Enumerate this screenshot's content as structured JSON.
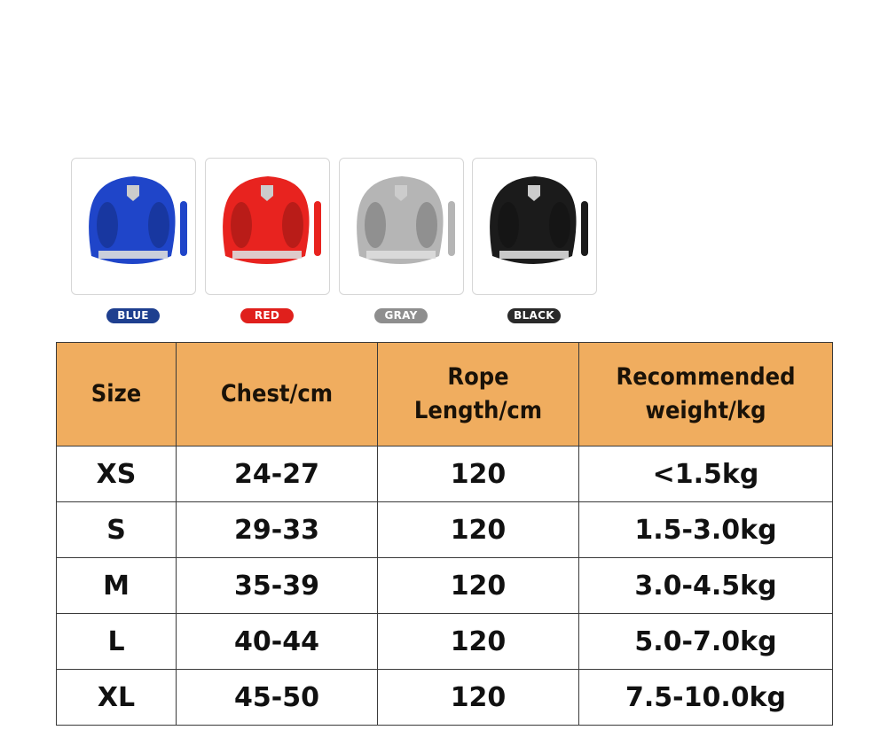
{
  "colors": [
    {
      "label": "BLUE",
      "color": "#1f45c9",
      "pill": "#1e3f8f"
    },
    {
      "label": "RED",
      "color": "#e8231f",
      "pill": "#e0201c"
    },
    {
      "label": "GRAY",
      "color": "#b5b5b5",
      "pill": "#8e8e8e"
    },
    {
      "label": "BLACK",
      "color": "#1b1b1b",
      "pill": "#2a2a2a"
    }
  ],
  "table": {
    "header_color": "#f0ad5f",
    "headers": [
      {
        "line1": "Size",
        "line2": ""
      },
      {
        "line1": "Chest/cm",
        "line2": ""
      },
      {
        "line1": "Rope",
        "line2": "Length/cm"
      },
      {
        "line1": "Recommended",
        "line2": "weight/kg"
      }
    ],
    "rows": [
      [
        "XS",
        "24-27",
        "120",
        "<1.5kg"
      ],
      [
        "S",
        "29-33",
        "120",
        "1.5-3.0kg"
      ],
      [
        "M",
        "35-39",
        "120",
        "3.0-4.5kg"
      ],
      [
        "L",
        "40-44",
        "120",
        "5.0-7.0kg"
      ],
      [
        "XL",
        "45-50",
        "120",
        "7.5-10.0kg"
      ]
    ]
  }
}
